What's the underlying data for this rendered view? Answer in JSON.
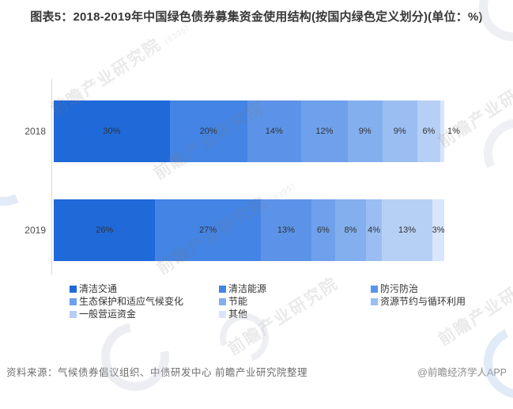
{
  "title": "图表5：2018-2019年中国绿色债券募集资金使用结构(按国内绿色定义划分)(单位：%)",
  "footer": {
    "source": "资料来源：气候债券倡议组织、中债研发中心 前瞻产业研究院整理",
    "credit": "@前瞻经济学人APP"
  },
  "watermark": "前瞻产业研究院",
  "chart_data": {
    "type": "bar",
    "orientation": "horizontal-stacked",
    "title": "图表5：2018-2019年中国绿色债券募集资金使用结构(按国内绿色定义划分)(单位：%)",
    "categories": [
      "2018",
      "2019"
    ],
    "series": [
      {
        "name": "清洁交通",
        "color": "#1F69D9",
        "values": [
          30,
          26
        ]
      },
      {
        "name": "清洁能源",
        "color": "#4384E4",
        "values": [
          20,
          27
        ]
      },
      {
        "name": "防污防治",
        "color": "#5C93E8",
        "values": [
          14,
          13
        ]
      },
      {
        "name": "生态保护和适应气候变化",
        "color": "#6FA0EB",
        "values": [
          12,
          6
        ]
      },
      {
        "name": "节能",
        "color": "#84AFEE",
        "values": [
          9,
          8
        ]
      },
      {
        "name": "资源节约与循环利用",
        "color": "#9ABEF2",
        "values": [
          9,
          4
        ]
      },
      {
        "name": "一般营运资金",
        "color": "#B6CFF5",
        "values": [
          6,
          13
        ]
      },
      {
        "name": "其他",
        "color": "#D9E5FA",
        "values": [
          1,
          3
        ]
      }
    ],
    "value_suffix": "%",
    "xlabel": "",
    "ylabel": "",
    "xlim": [
      0,
      100
    ],
    "grid": false,
    "legend_position": "bottom"
  }
}
